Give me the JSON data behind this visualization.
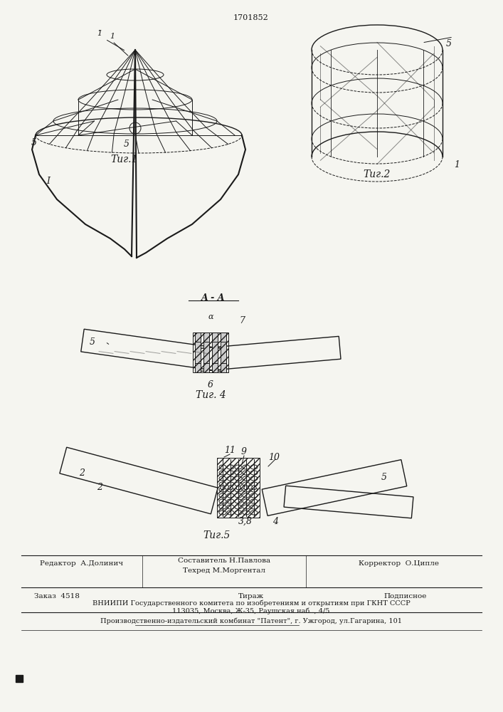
{
  "patent_number": "1701852",
  "fig1_caption": "Τиг.1",
  "fig2_caption": "Τиг.2",
  "fig4_caption": "Τиг. 4",
  "fig5_caption": "Τиг.5",
  "section_label": "A - A",
  "footer_line1_left": "Редактор  А.Долинич",
  "footer_line1_mid": "Составитель Н.Павлова\nТехред М.Моргентал",
  "footer_line1_right": "Корректор  О.Ципле",
  "footer_line2_left": "Заказ  4518",
  "footer_line2_mid": "Тираж",
  "footer_line2_right": "Подписное",
  "footer_line3": "ВНИИПИ Государственного комитета по изобретениям и открытиям при ГКНТ СССР",
  "footer_line4": "113035, Москва, Ж-35, Раушская наб.., 4/5",
  "footer_line5": "Производственно-издательский комбинат \"Патент\", г. Ужгород, ул.Гагарина, 101",
  "bg_color": "#f5f5f0",
  "line_color": "#1a1a1a",
  "text_color": "#1a1a1a"
}
